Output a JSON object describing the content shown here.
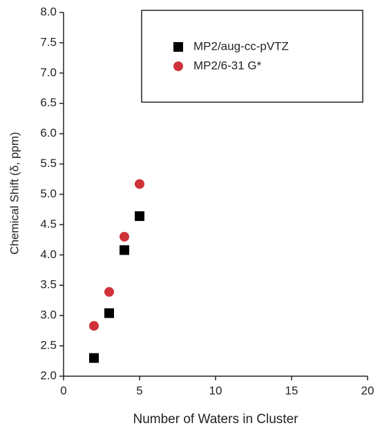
{
  "chart_data": {
    "type": "scatter",
    "x_label": "Number of Waters in Cluster",
    "y_label": "Chemical Shift (δ, ppm)",
    "xlim": [
      0,
      20
    ],
    "xticks": [
      0,
      5,
      10,
      15,
      20
    ],
    "ylim": [
      2.0,
      8.0
    ],
    "yticks": [
      {
        "value": 2.0,
        "label": "2.0"
      },
      {
        "value": 2.5,
        "label": "2.5"
      },
      {
        "value": 3.0,
        "label": "3.0"
      },
      {
        "value": 3.5,
        "label": "3.5"
      },
      {
        "value": 4.0,
        "label": "4.0"
      },
      {
        "value": 4.5,
        "label": "4.5"
      },
      {
        "value": 5.0,
        "label": "5.0"
      },
      {
        "value": 5.5,
        "label": "5.5"
      },
      {
        "value": 6.0,
        "label": "6.0"
      },
      {
        "value": 6.5,
        "label": "6.5"
      },
      {
        "value": 7.0,
        "label": "7.0"
      },
      {
        "value": 7.5,
        "label": "7.5"
      },
      {
        "value": 8.0,
        "label": "8.0"
      }
    ],
    "legend": "upper right",
    "series": [
      {
        "name": "MP2/aug-cc-pVTZ",
        "color": "#000000",
        "marker": "square",
        "x": [
          2,
          3,
          4,
          5
        ],
        "values": [
          2.3,
          3.04,
          4.08,
          4.64
        ]
      },
      {
        "name": "MP2/6-31 G*",
        "color": "#d0323a",
        "marker": "circle",
        "x": [
          2,
          3,
          4,
          5
        ],
        "values": [
          2.83,
          3.39,
          4.3,
          5.17
        ]
      }
    ]
  }
}
